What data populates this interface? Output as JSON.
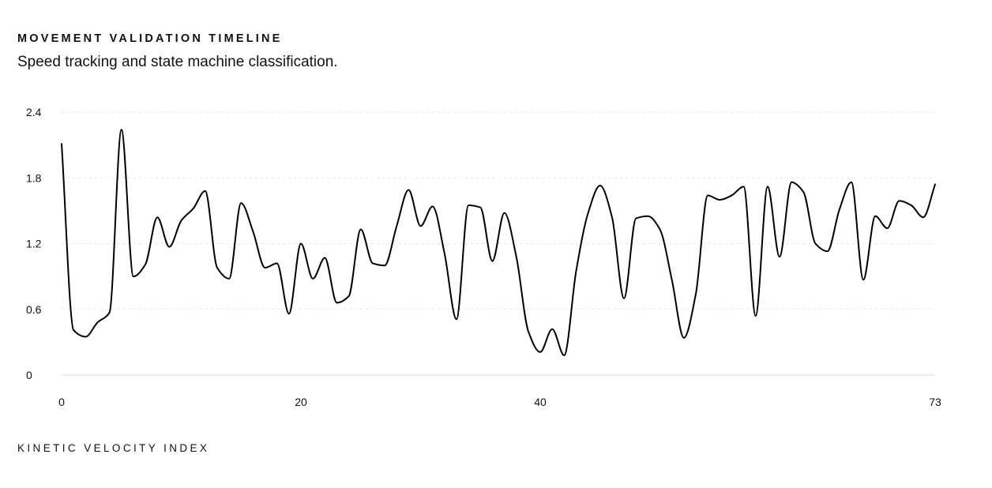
{
  "header": {
    "title": "MOVEMENT VALIDATION TIMELINE",
    "subtitle": "Speed tracking and state machine classification."
  },
  "footer": {
    "caption": "KINETIC VELOCITY INDEX"
  },
  "chart_data": {
    "type": "line",
    "title": "MOVEMENT VALIDATION TIMELINE",
    "subtitle": "Speed tracking and state machine classification.",
    "xlabel": "",
    "ylabel": "",
    "xlim": [
      0,
      73
    ],
    "ylim": [
      0,
      2.4
    ],
    "x_ticks": [
      "0",
      "20",
      "40",
      "73"
    ],
    "x_tick_values": [
      0,
      20,
      40,
      73
    ],
    "y_ticks": [
      "0",
      "0.6",
      "1.2",
      "1.8",
      "2.4"
    ],
    "y_tick_values": [
      0,
      0.6,
      1.2,
      1.8,
      2.4
    ],
    "grid": "horizontal dotted",
    "line_color": "#000000",
    "series": [
      {
        "values": [
          2.11,
          0.41,
          0.35,
          0.48,
          0.57,
          2.24,
          0.9,
          1.01,
          1.44,
          1.17,
          1.41,
          1.52,
          1.68,
          0.98,
          0.88,
          1.57,
          1.31,
          0.98,
          1.02,
          0.56,
          1.2,
          0.88,
          1.07,
          0.66,
          0.72,
          1.33,
          1.02,
          1.0,
          1.36,
          1.69,
          1.36,
          1.54,
          1.11,
          0.51,
          1.55,
          1.53,
          1.04,
          1.48,
          1.08,
          0.4,
          0.21,
          0.42,
          0.18,
          0.95,
          1.48,
          1.73,
          1.44,
          0.7,
          1.43,
          1.45,
          1.33,
          0.87,
          0.34,
          0.74,
          1.64,
          1.6,
          1.64,
          1.72,
          0.54,
          1.72,
          1.08,
          1.76,
          1.67,
          1.2,
          1.13,
          1.51,
          1.76,
          0.87,
          1.45,
          1.34,
          1.59,
          1.55,
          1.44,
          1.74
        ]
      }
    ]
  }
}
